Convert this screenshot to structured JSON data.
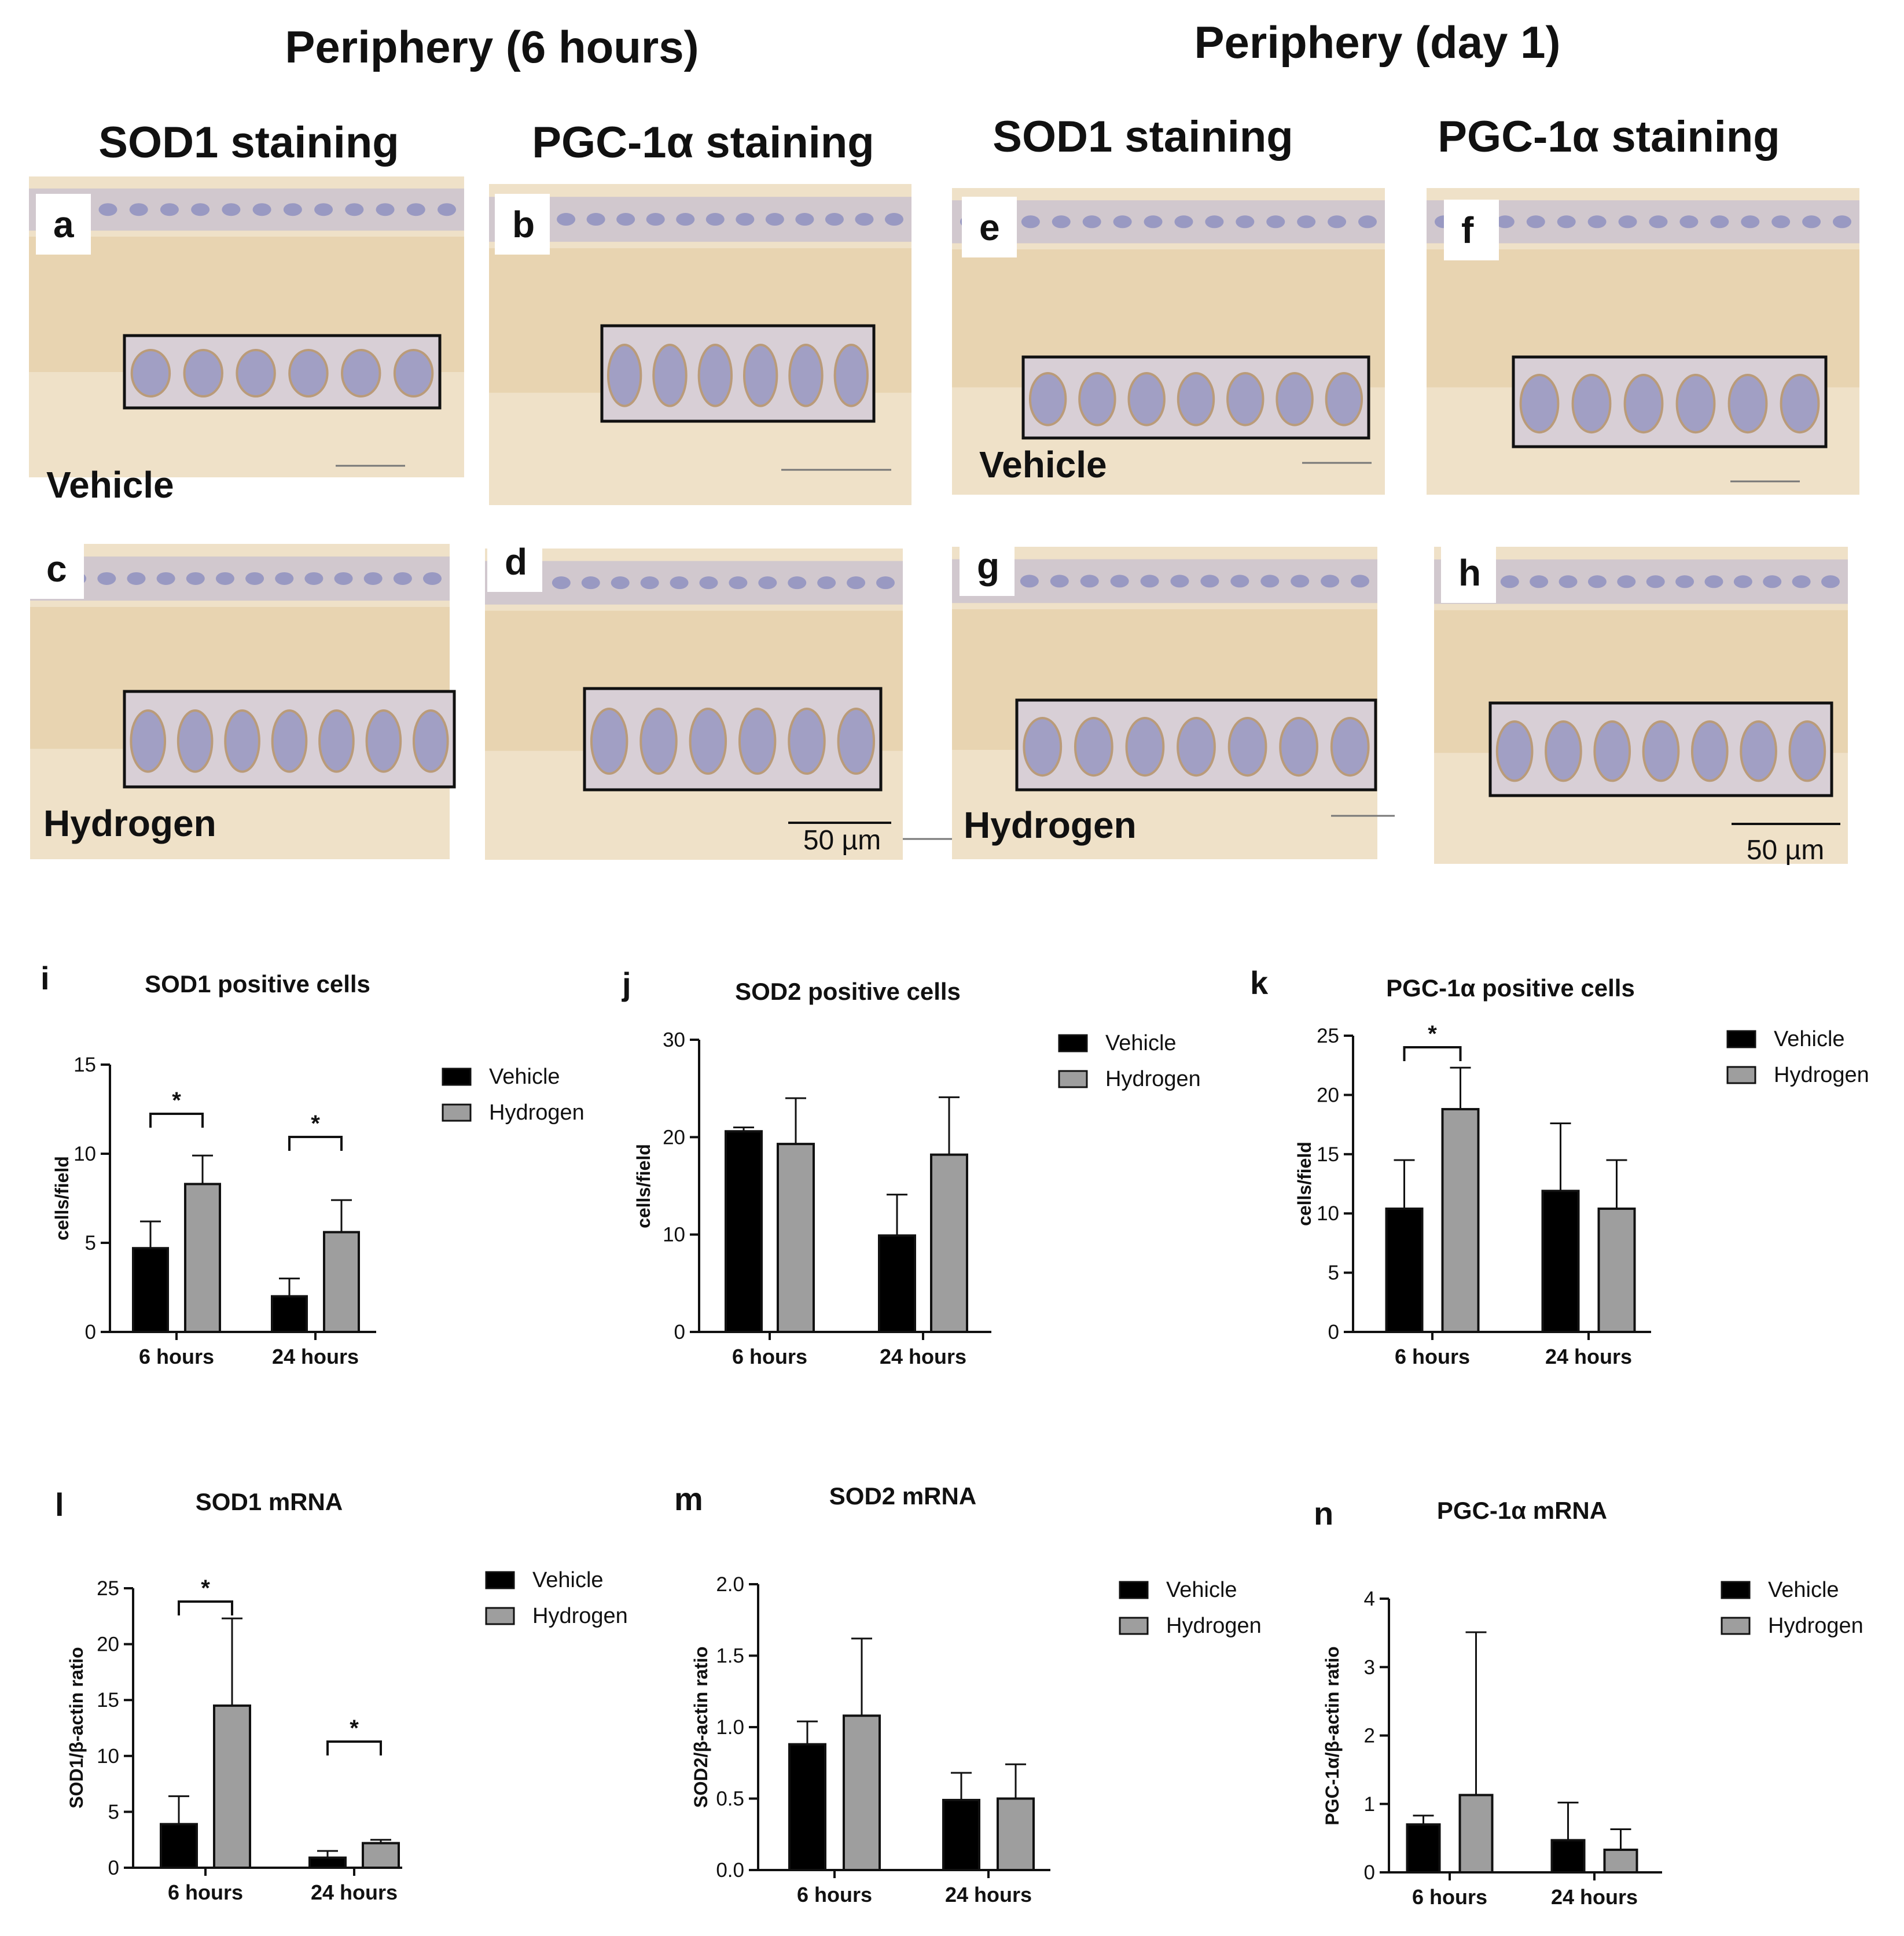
{
  "headings": {
    "left_group": "Periphery (6 hours)",
    "right_group": "Periphery (day 1)",
    "col1": "SOD1 staining",
    "col2": "PGC-1α staining",
    "col3": "SOD1 staining",
    "col4": "PGC-1α staining"
  },
  "micrographs": {
    "panels": [
      {
        "letter": "a",
        "condition": "Vehicle",
        "scale_text": ""
      },
      {
        "letter": "b",
        "condition": "",
        "scale_text": ""
      },
      {
        "letter": "c",
        "condition": "Hydrogen",
        "scale_text": ""
      },
      {
        "letter": "d",
        "condition": "",
        "scale_text": "50 µm"
      },
      {
        "letter": "e",
        "condition": "Vehicle",
        "scale_text": ""
      },
      {
        "letter": "f",
        "condition": "",
        "scale_text": ""
      },
      {
        "letter": "g",
        "condition": "Hydrogen",
        "scale_text": ""
      },
      {
        "letter": "h",
        "condition": "",
        "scale_text": "50 µm"
      }
    ],
    "colors": {
      "tissue": "#efe1c8",
      "stroma": "#e6cfa6",
      "nuclei": "#8f90bf",
      "box": "#111111"
    }
  },
  "legend_labels": [
    "Vehicle",
    "Hydrogen"
  ],
  "series_colors": [
    "#000000",
    "#9e9e9e"
  ],
  "chart_data": [
    {
      "letter": "i",
      "type": "bar",
      "title": "SOD1 positive cells",
      "categories": [
        "6 hours",
        "24 hours"
      ],
      "series": [
        {
          "name": "Vehicle",
          "values": [
            4.7,
            2.0
          ],
          "errors": [
            1.5,
            1.0
          ]
        },
        {
          "name": "Hydrogen",
          "values": [
            8.3,
            5.6
          ],
          "errors": [
            1.6,
            1.8
          ]
        }
      ],
      "ylabel": "cells/field",
      "ylim": [
        0,
        15
      ],
      "yticks": [
        0,
        5,
        10,
        15
      ],
      "ytick_labels": [
        "0",
        "5",
        "10",
        "15"
      ],
      "significance": [
        {
          "category": 0,
          "label": "*"
        },
        {
          "category": 1,
          "label": "*"
        }
      ],
      "legend": "right"
    },
    {
      "letter": "j",
      "type": "bar",
      "title": "SOD2 positive cells",
      "categories": [
        "6 hours",
        "24 hours"
      ],
      "series": [
        {
          "name": "Vehicle",
          "values": [
            20.6,
            9.9
          ],
          "errors": [
            0.4,
            4.2
          ]
        },
        {
          "name": "Hydrogen",
          "values": [
            19.3,
            18.2
          ],
          "errors": [
            4.7,
            5.9
          ]
        }
      ],
      "ylabel": "cells/field",
      "ylim": [
        0,
        30
      ],
      "yticks": [
        0,
        10,
        20,
        30
      ],
      "ytick_labels": [
        "0",
        "10",
        "20",
        "30"
      ],
      "significance": [],
      "legend": "right"
    },
    {
      "letter": "k",
      "type": "bar",
      "title": "PGC-1α positive cells",
      "categories": [
        "6 hours",
        "24 hours"
      ],
      "series": [
        {
          "name": "Vehicle",
          "values": [
            10.4,
            11.9
          ],
          "errors": [
            4.1,
            5.7
          ]
        },
        {
          "name": "Hydrogen",
          "values": [
            18.8,
            10.4
          ],
          "errors": [
            3.5,
            4.1
          ]
        }
      ],
      "ylabel": "cells/field",
      "ylim": [
        0,
        25
      ],
      "yticks": [
        0,
        5,
        10,
        15,
        20,
        25
      ],
      "ytick_labels": [
        "0",
        "5",
        "10",
        "15",
        "20",
        "25"
      ],
      "significance": [
        {
          "category": 0,
          "label": "*"
        }
      ],
      "legend": "right"
    },
    {
      "letter": "l",
      "type": "bar",
      "title": "SOD1 mRNA",
      "categories": [
        "6 hours",
        "24 hours"
      ],
      "series": [
        {
          "name": "Vehicle",
          "values": [
            3.9,
            0.9
          ],
          "errors": [
            2.5,
            0.6
          ]
        },
        {
          "name": "Hydrogen",
          "values": [
            14.5,
            2.2
          ],
          "errors": [
            7.8,
            0.3
          ]
        }
      ],
      "ylabel": "SOD1/β-actin ratio",
      "ylim": [
        0,
        25
      ],
      "yticks": [
        0,
        5,
        10,
        15,
        20,
        25
      ],
      "ytick_labels": [
        "0",
        "5",
        "10",
        "15",
        "20",
        "25"
      ],
      "significance": [
        {
          "category": 0,
          "label": "*"
        },
        {
          "category": 1,
          "label": "*"
        }
      ],
      "legend": "right"
    },
    {
      "letter": "m",
      "type": "bar",
      "title": "SOD2 mRNA",
      "categories": [
        "6 hours",
        "24 hours"
      ],
      "series": [
        {
          "name": "Vehicle",
          "values": [
            0.88,
            0.49
          ],
          "errors": [
            0.16,
            0.19
          ]
        },
        {
          "name": "Hydrogen",
          "values": [
            1.08,
            0.5
          ],
          "errors": [
            0.54,
            0.24
          ]
        }
      ],
      "ylabel": "SOD2/β-actin ratio",
      "ylim": [
        0,
        2.0
      ],
      "yticks": [
        0,
        0.5,
        1.0,
        1.5,
        2.0
      ],
      "ytick_labels": [
        "0.0",
        "0.5",
        "1.0",
        "1.5",
        "2.0"
      ],
      "significance": [],
      "legend": "right"
    },
    {
      "letter": "n",
      "type": "bar",
      "title": "PGC-1α mRNA",
      "categories": [
        "6 hours",
        "24 hours"
      ],
      "series": [
        {
          "name": "Vehicle",
          "values": [
            0.7,
            0.47
          ],
          "errors": [
            0.13,
            0.55
          ]
        },
        {
          "name": "Hydrogen",
          "values": [
            1.13,
            0.33
          ],
          "errors": [
            2.38,
            0.3
          ]
        }
      ],
      "ylabel": "PGC-1α/β-actin ratio",
      "ylim": [
        0,
        4
      ],
      "yticks": [
        0,
        1,
        2,
        3,
        4
      ],
      "ytick_labels": [
        "0",
        "1",
        "2",
        "3",
        "4"
      ],
      "significance": [],
      "legend": "right"
    }
  ]
}
